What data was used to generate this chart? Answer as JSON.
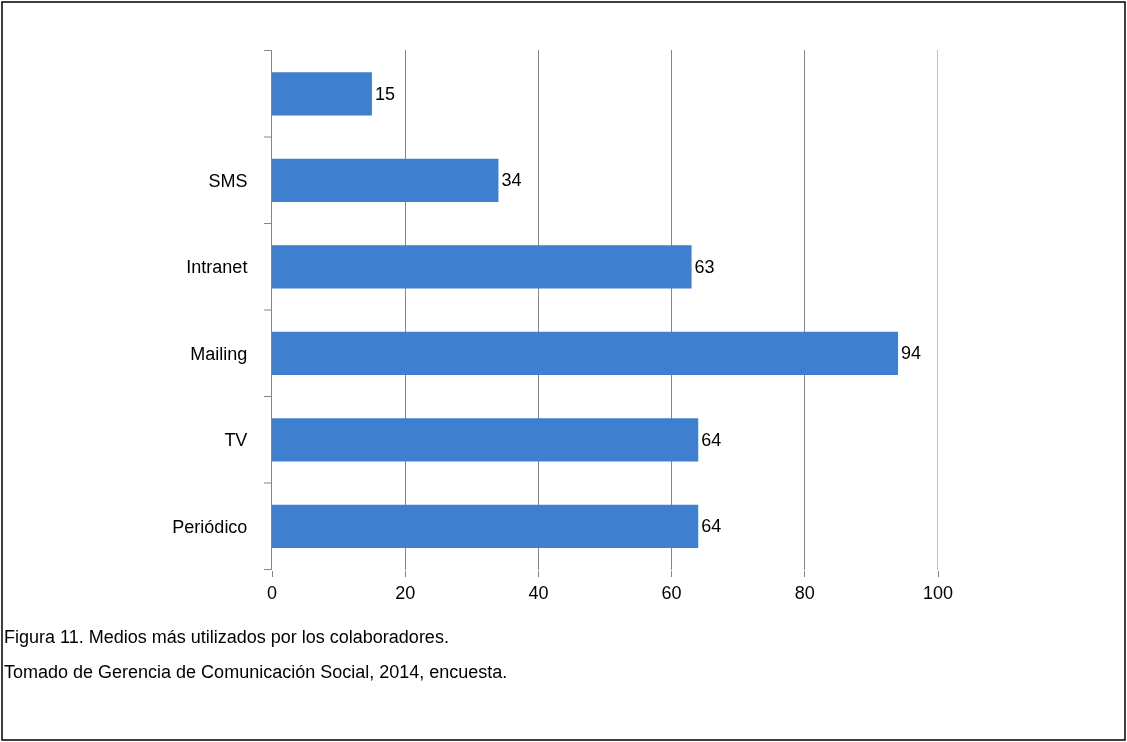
{
  "chart_data": {
    "type": "bar",
    "orientation": "horizontal",
    "categories": [
      null,
      "SMS",
      "Intranet",
      "Mailing",
      "TV",
      "Periódico"
    ],
    "values": [
      15,
      34,
      63,
      94,
      64,
      64
    ],
    "color": "#3f7fcf",
    "xlim": [
      0,
      100
    ],
    "xticks": [
      0,
      20,
      40,
      60,
      80,
      100
    ],
    "grid": "x",
    "data_labels": true,
    "annotations": [
      "Figura 11. Medios más utilizados por los colaboradores.",
      "Tomado de Gerencia de Comunicación Social, 2014, encuesta."
    ]
  }
}
